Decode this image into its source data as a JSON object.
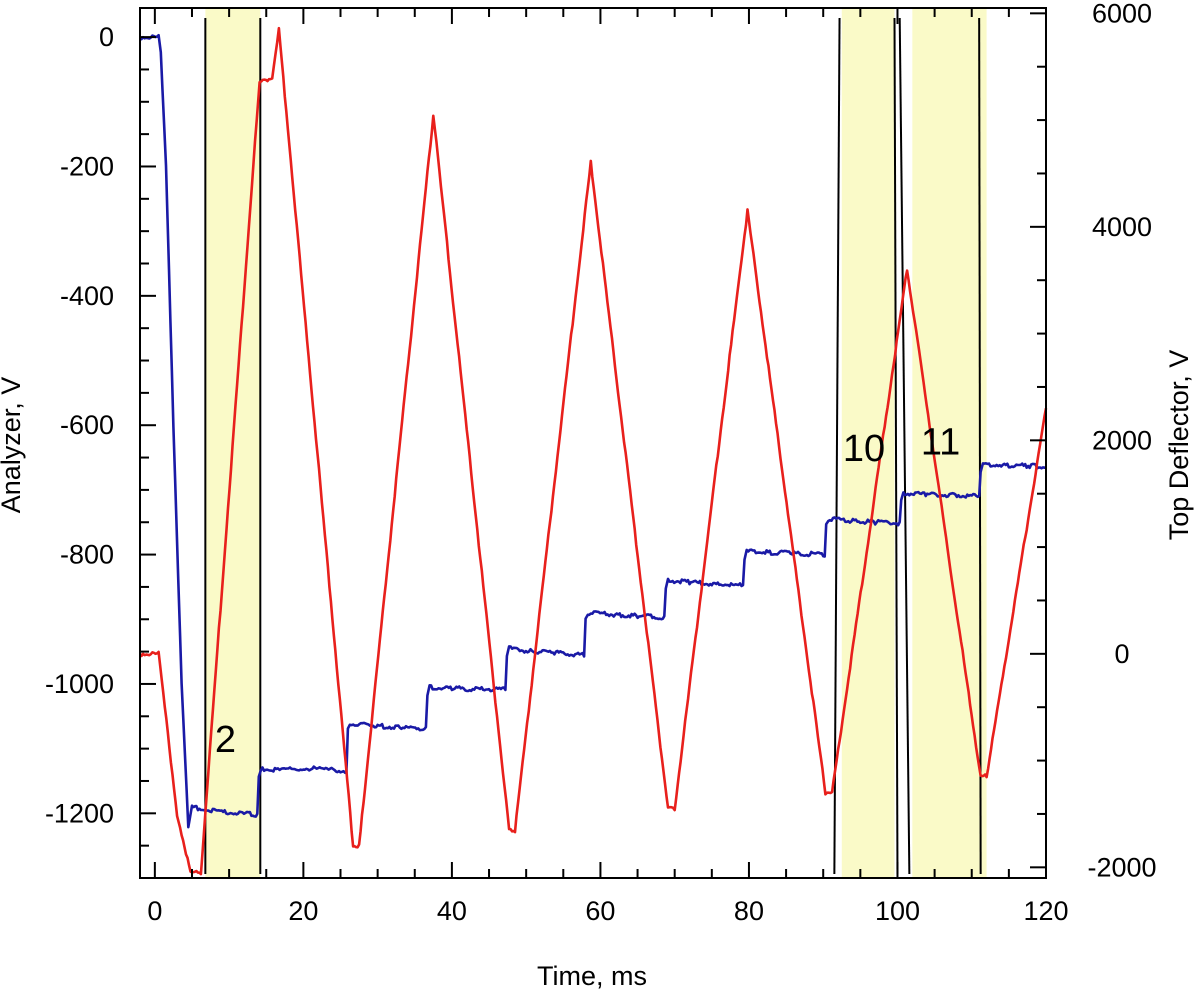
{
  "chart_data": {
    "type": "line",
    "title": "",
    "xlabel": "Time, ms",
    "ylabel": "Analyzer, V",
    "y2label": "Top Deflector, V",
    "xlim": [
      -2,
      120
    ],
    "ylim": [
      -1300,
      45
    ],
    "y2lim": [
      -2100,
      6050
    ],
    "xticks": [
      0,
      20,
      40,
      60,
      80,
      100,
      120
    ],
    "yticks": [
      0,
      -200,
      -400,
      -600,
      -800,
      -1000,
      -1200
    ],
    "y2ticks": [
      6000,
      4000,
      2000,
      0,
      -2000
    ],
    "grid": false,
    "legend": "none",
    "series": [
      {
        "axis": "left",
        "color": "#1a1aa6",
        "points": [
          [
            -2,
            0
          ],
          [
            0.5,
            0
          ],
          [
            0.8,
            -20
          ],
          [
            1.5,
            -200
          ],
          [
            2.5,
            -600
          ],
          [
            3.6,
            -1000
          ],
          [
            4.5,
            -1220
          ],
          [
            5,
            -1190
          ],
          [
            7,
            -1195
          ],
          [
            9,
            -1198
          ],
          [
            11,
            -1200
          ],
          [
            13.8,
            -1202
          ],
          [
            14,
            -1140
          ],
          [
            14.5,
            -1132
          ],
          [
            17,
            -1133
          ],
          [
            20,
            -1130
          ],
          [
            23,
            -1132
          ],
          [
            25.8,
            -1135
          ],
          [
            26,
            -1070
          ],
          [
            26.5,
            -1062
          ],
          [
            30,
            -1065
          ],
          [
            33,
            -1067
          ],
          [
            36.5,
            -1069
          ],
          [
            36.7,
            -1015
          ],
          [
            37,
            -1005
          ],
          [
            40,
            -1007
          ],
          [
            44,
            -1008
          ],
          [
            47.2,
            -1008
          ],
          [
            47.4,
            -955
          ],
          [
            47.7,
            -945
          ],
          [
            51,
            -950
          ],
          [
            54,
            -952
          ],
          [
            57.8,
            -955
          ],
          [
            58,
            -900
          ],
          [
            58.3,
            -890
          ],
          [
            62,
            -893
          ],
          [
            65,
            -895
          ],
          [
            68.6,
            -897
          ],
          [
            68.8,
            -850
          ],
          [
            69.1,
            -840
          ],
          [
            72,
            -843
          ],
          [
            76,
            -846
          ],
          [
            79.2,
            -848
          ],
          [
            79.4,
            -805
          ],
          [
            79.7,
            -795
          ],
          [
            83,
            -797
          ],
          [
            86,
            -798
          ],
          [
            90.2,
            -800
          ],
          [
            90.4,
            -755
          ],
          [
            90.7,
            -745
          ],
          [
            94,
            -748
          ],
          [
            97,
            -750
          ],
          [
            100.3,
            -752
          ],
          [
            100.5,
            -715
          ],
          [
            100.8,
            -705
          ],
          [
            104,
            -707
          ],
          [
            108,
            -708
          ],
          [
            111,
            -710
          ],
          [
            111.2,
            -670
          ],
          [
            111.5,
            -660
          ],
          [
            115,
            -662
          ],
          [
            118,
            -663
          ],
          [
            120,
            -665
          ]
        ]
      },
      {
        "axis": "right",
        "color": "#e8201c",
        "points": [
          [
            -2,
            0.05
          ],
          [
            0.5,
            0.05
          ],
          [
            3,
            -1500
          ],
          [
            4.8,
            -2050
          ],
          [
            6.2,
            -2050
          ],
          [
            14.1,
            5350
          ],
          [
            15.8,
            5400
          ],
          [
            16.7,
            5850
          ],
          [
            26.7,
            -1800
          ],
          [
            27.5,
            -1800
          ],
          [
            37.5,
            5050
          ],
          [
            47.7,
            -1650
          ],
          [
            48.5,
            -1650
          ],
          [
            58.7,
            4600
          ],
          [
            69.1,
            -1450
          ],
          [
            70,
            -1450
          ],
          [
            79.8,
            4150
          ],
          [
            90.3,
            -1300
          ],
          [
            91.2,
            -1300
          ],
          [
            101.3,
            3600
          ],
          [
            111.2,
            -1150
          ],
          [
            112,
            -1150
          ],
          [
            120,
            2300
          ]
        ]
      }
    ],
    "bands": [
      {
        "label": "2",
        "x_start": 6.8,
        "x_end": 14.2
      },
      {
        "label": "10",
        "x_start": 92.5,
        "x_end": 99.6
      },
      {
        "label": "11",
        "x_start": 102,
        "x_end": 111
      },
      {
        "label": "",
        "x_start": 108,
        "x_end": 112
      }
    ]
  }
}
